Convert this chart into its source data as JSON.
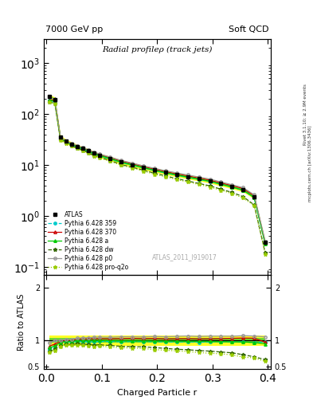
{
  "title": "Radial profileρ (track jets)",
  "header_left": "7000 GeV pp",
  "header_right": "Soft QCD",
  "xlabel": "Charged Particle r",
  "ylabel_ratio": "Ratio to ATLAS",
  "watermark": "ATLAS_2011_I919017",
  "right_label_top": "Rivet 3.1.10; ≥ 2.9M events",
  "right_label_bot": "mcplots.cern.ch [arXiv:1306.3436]",
  "r_values": [
    0.005,
    0.015,
    0.025,
    0.035,
    0.045,
    0.055,
    0.065,
    0.075,
    0.085,
    0.095,
    0.115,
    0.135,
    0.155,
    0.175,
    0.195,
    0.215,
    0.235,
    0.255,
    0.275,
    0.295,
    0.315,
    0.335,
    0.355,
    0.375,
    0.395
  ],
  "atlas_values": [
    220,
    195,
    35,
    29,
    26,
    23,
    21,
    19,
    17,
    15.5,
    13.5,
    11.5,
    10.2,
    9.0,
    8.0,
    7.2,
    6.5,
    5.9,
    5.4,
    4.9,
    4.3,
    3.8,
    3.3,
    2.4,
    0.3
  ],
  "atlas_errors": [
    20,
    20,
    2,
    1.5,
    1.2,
    1.0,
    0.9,
    0.8,
    0.7,
    0.6,
    0.5,
    0.5,
    0.4,
    0.35,
    0.3,
    0.25,
    0.22,
    0.2,
    0.18,
    0.16,
    0.15,
    0.13,
    0.11,
    0.09,
    0.025
  ],
  "py359_values": [
    185,
    170,
    33,
    28,
    25,
    22.5,
    20.5,
    18.5,
    16.5,
    15.2,
    13.2,
    11.2,
    10.0,
    8.8,
    7.8,
    7.0,
    6.3,
    5.75,
    5.2,
    4.75,
    4.2,
    3.7,
    3.2,
    2.3,
    0.29
  ],
  "py370_values": [
    195,
    182,
    34,
    29,
    26,
    23.5,
    21.5,
    19.5,
    17.5,
    16.0,
    13.9,
    11.9,
    10.6,
    9.3,
    8.3,
    7.4,
    6.7,
    6.1,
    5.55,
    5.05,
    4.45,
    3.95,
    3.45,
    2.5,
    0.29
  ],
  "pya_values": [
    190,
    175,
    33.5,
    28.5,
    25.5,
    23,
    21,
    19,
    17,
    15.5,
    13.4,
    11.4,
    10.1,
    8.9,
    7.9,
    7.1,
    6.4,
    5.8,
    5.3,
    4.8,
    4.2,
    3.7,
    3.2,
    2.3,
    0.28
  ],
  "pydw_values": [
    175,
    162,
    31.5,
    27,
    24,
    21.5,
    19.5,
    17.5,
    15.5,
    14.2,
    12.2,
    10.2,
    9.0,
    7.9,
    6.9,
    6.1,
    5.4,
    4.85,
    4.35,
    3.9,
    3.35,
    2.9,
    2.4,
    1.65,
    0.19
  ],
  "pyp0_values": [
    210,
    195,
    35,
    29.5,
    26.5,
    24,
    22,
    20,
    18,
    16.5,
    14.3,
    12.3,
    10.9,
    9.6,
    8.6,
    7.7,
    7.0,
    6.4,
    5.8,
    5.3,
    4.65,
    4.1,
    3.6,
    2.6,
    0.32
  ],
  "pyproq2o_values": [
    170,
    158,
    31,
    26.5,
    23.5,
    21,
    19,
    17,
    15,
    13.8,
    11.8,
    9.9,
    8.7,
    7.6,
    6.6,
    5.85,
    5.2,
    4.65,
    4.15,
    3.7,
    3.2,
    2.75,
    2.25,
    1.6,
    0.18
  ],
  "color_359": "#00cccc",
  "color_370": "#cc0000",
  "color_a": "#00cc00",
  "color_dw": "#336600",
  "color_p0": "#999999",
  "color_proq2o": "#99cc00",
  "ylim_main": [
    0.07,
    3000
  ],
  "ylim_ratio": [
    0.45,
    2.25
  ],
  "ratio_yticks": [
    0.5,
    1.0,
    2.0
  ],
  "band_yellow": 0.1,
  "band_green": 0.05
}
